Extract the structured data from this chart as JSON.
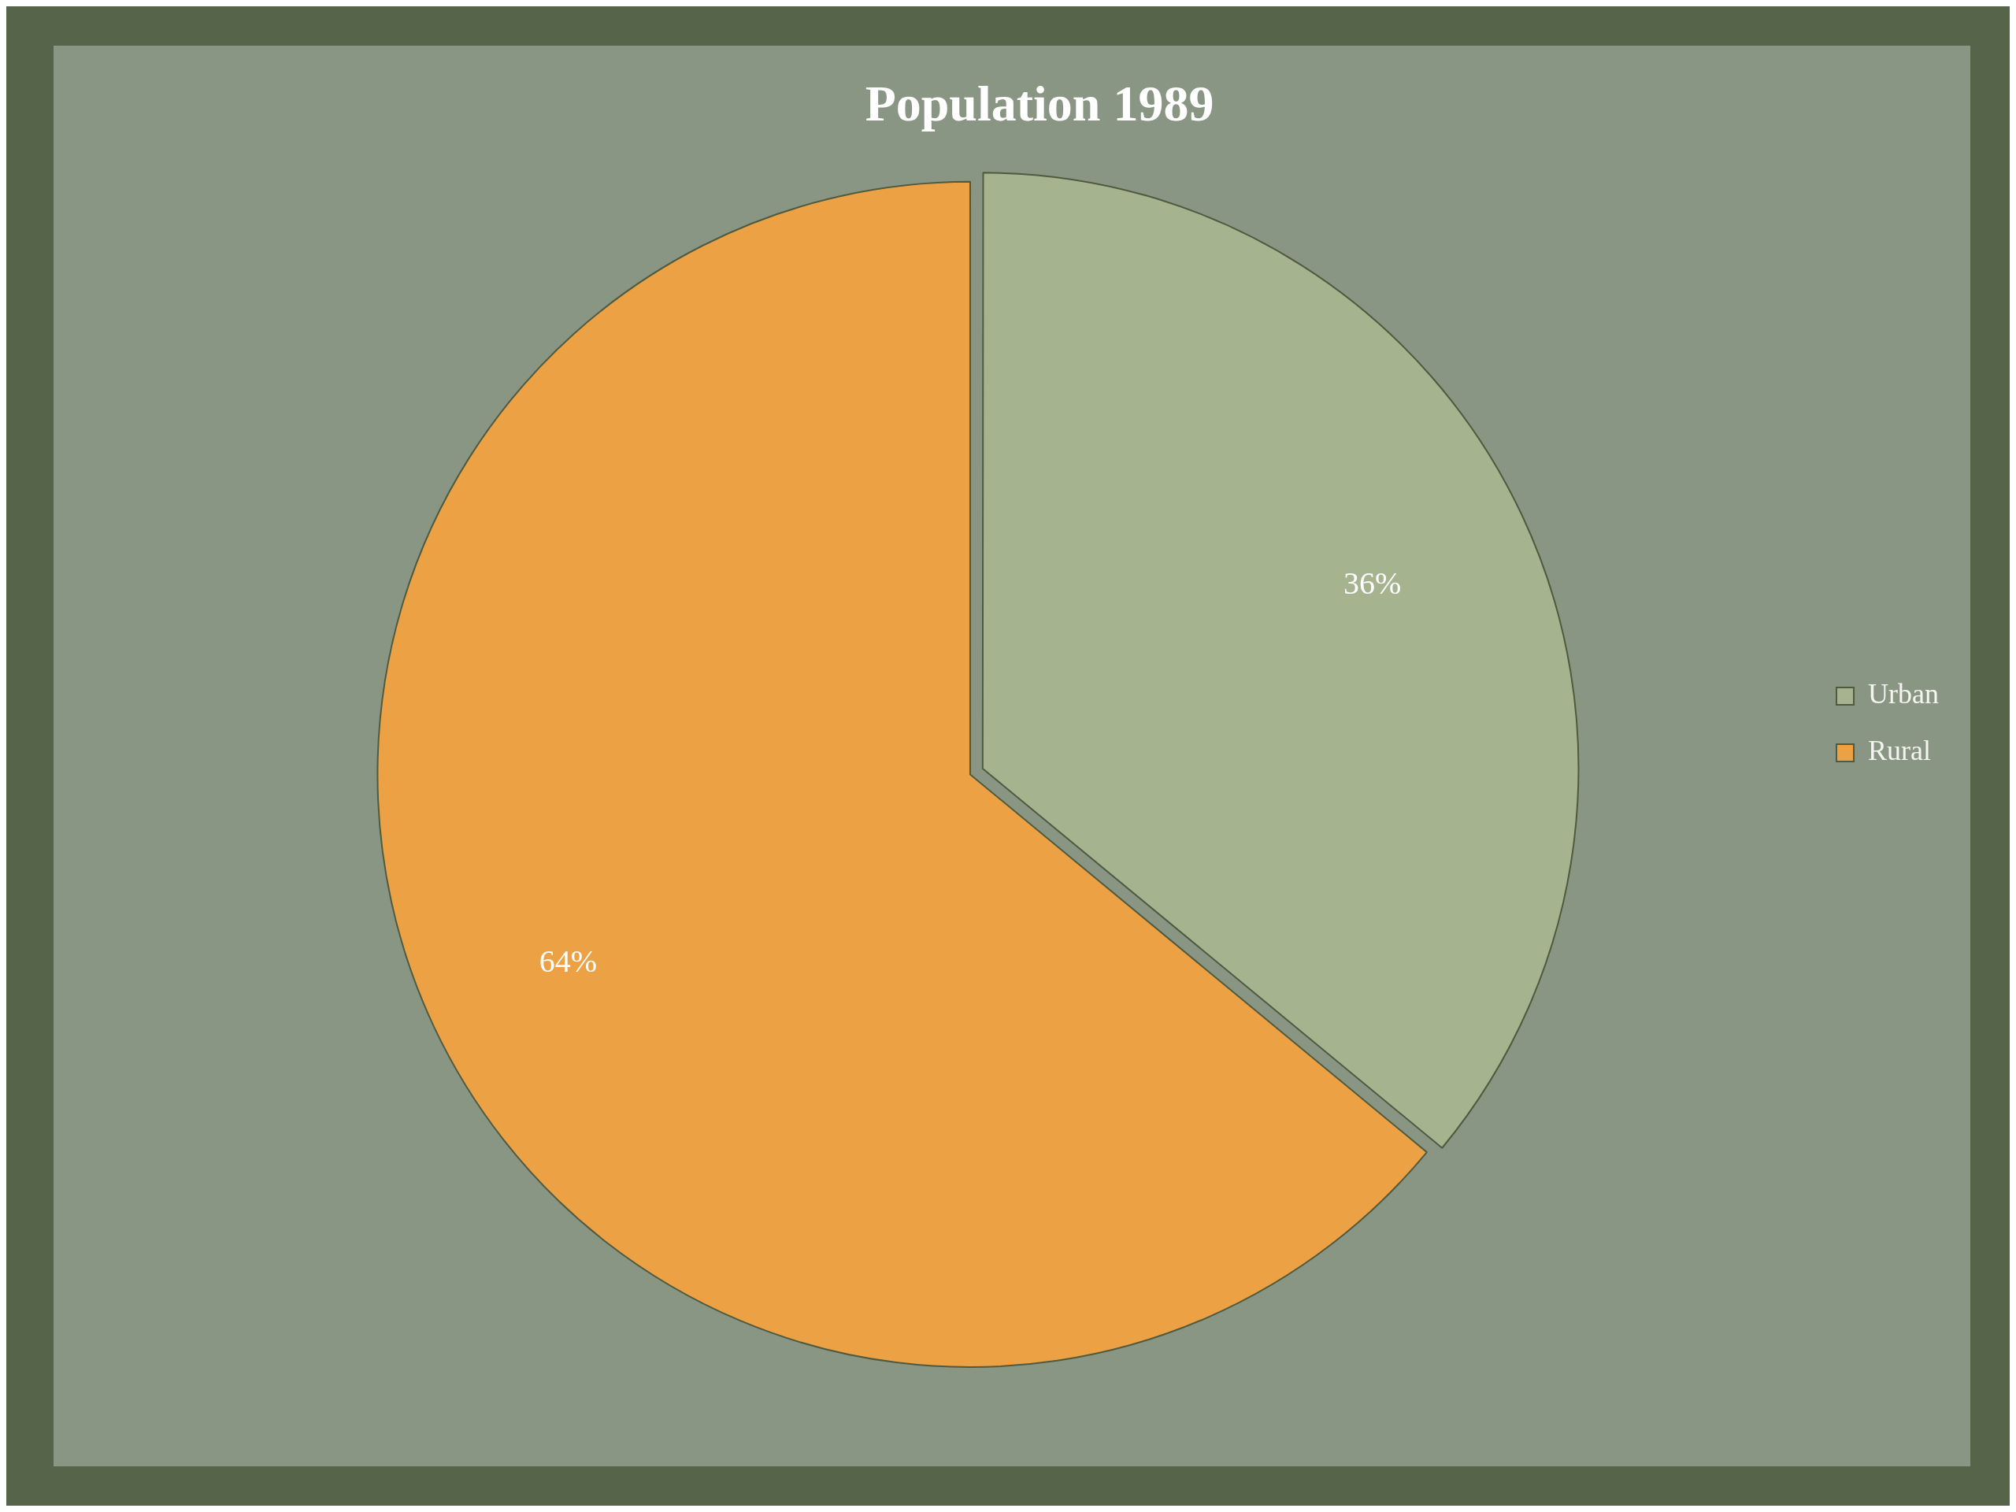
{
  "chart_data": {
    "type": "pie",
    "title": "Population 1989",
    "categories": [
      "Urban",
      "Rural"
    ],
    "values": [
      36,
      64
    ],
    "colors": [
      "#a5b48f",
      "#eda145"
    ],
    "value_labels": [
      "36%",
      "64%"
    ],
    "legend": "right"
  }
}
